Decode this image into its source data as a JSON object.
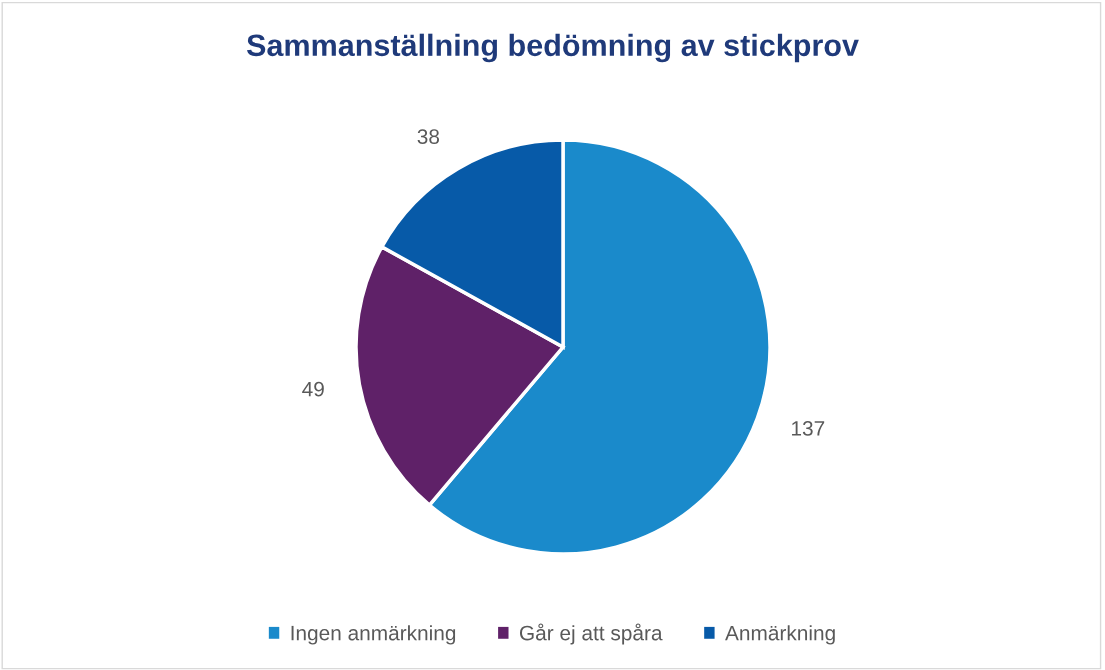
{
  "chart_data": {
    "type": "pie",
    "title": "Sammanställning bedömning av stickprov",
    "categories": [
      "Ingen anmärkning",
      "Går ej att spåra",
      "Anmärkning"
    ],
    "values": [
      137,
      49,
      38
    ],
    "colors": [
      "#1a8acb",
      "#5f2168",
      "#075aa8"
    ],
    "data_labels": true,
    "legend": "bottom"
  }
}
